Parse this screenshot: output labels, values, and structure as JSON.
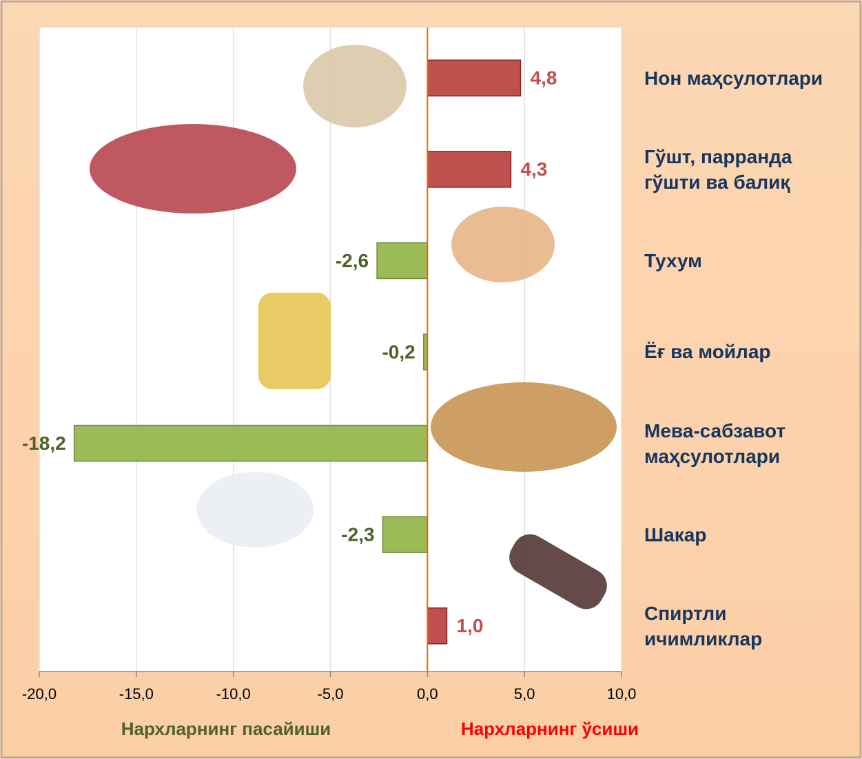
{
  "chart_data": {
    "type": "bar",
    "orientation": "horizontal",
    "categories": [
      "Нон маҳсулотлари",
      "Гўшт, парранда\nгўшти ва балиқ",
      "Тухум",
      "Ёғ ва мойлар",
      "Мева-сабзавот\nмаҳсулотлари",
      "Шакар",
      "Спиртли\nичимликлар"
    ],
    "values": [
      4.8,
      4.3,
      -2.6,
      -0.2,
      -18.2,
      -2.3,
      1.0
    ],
    "value_labels": [
      "4,8",
      "4,3",
      "-2,6",
      "-0,2",
      "-18,2",
      "-2,3",
      "1,0"
    ],
    "positive_color": "#c0504d",
    "negative_color": "#9bbb59",
    "positive_label_color": "#c0504d",
    "negative_label_color": "#4f6228",
    "xlim": [
      -20,
      10
    ],
    "xticks": [
      {
        "value": -20,
        "label": "-20,0"
      },
      {
        "value": -15,
        "label": "-15,0"
      },
      {
        "value": -10,
        "label": "-10,0"
      },
      {
        "value": -5,
        "label": "-5,0"
      },
      {
        "value": 0,
        "label": "0,0"
      },
      {
        "value": 5,
        "label": "5,0"
      },
      {
        "value": 10,
        "label": "10,0"
      }
    ],
    "grid": true,
    "decrease_label": "Нархларнинг пасайиши",
    "decrease_color": "#4f6228",
    "increase_label": "Нархларнинг ўсиши",
    "increase_color": "#ff0000"
  }
}
